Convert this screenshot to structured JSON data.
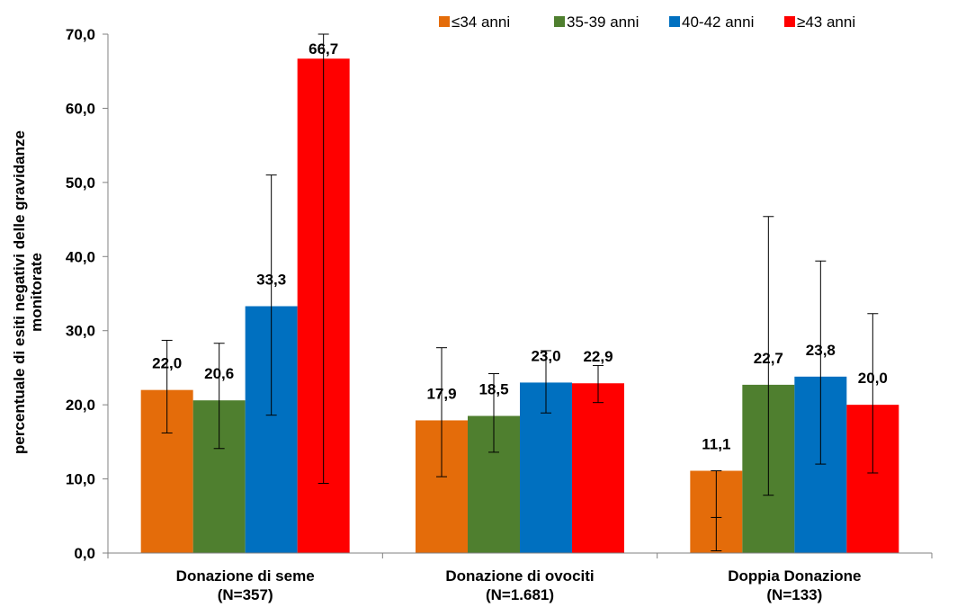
{
  "chart_data": {
    "type": "bar",
    "ylabel_lines": [
      "percentuale di esiti negativi delle gravidanze",
      "monitorate"
    ],
    "ylim": [
      0,
      70
    ],
    "yticks": [
      "0,0",
      "10,0",
      "20,0",
      "30,0",
      "40,0",
      "50,0",
      "60,0",
      "70,0"
    ],
    "categories": [
      [
        "Donazione di seme",
        "(N=357)"
      ],
      [
        "Donazione di ovociti",
        "(N=1.681)"
      ],
      [
        "Doppia Donazione",
        "(N=133)"
      ]
    ],
    "legend_placement": "top",
    "series": [
      {
        "name": "≤34 anni",
        "color": "#E46C0A",
        "values": [
          22.0,
          17.9,
          11.1
        ],
        "labels": [
          "22,0",
          "17,9",
          "11,1"
        ],
        "err_low": [
          16.2,
          10.3,
          0.3
        ],
        "err_high": [
          28.7,
          27.7,
          11.1
        ],
        "err_extra": [
          null,
          null,
          4.8
        ]
      },
      {
        "name": "35-39 anni",
        "color": "#4F7F2F",
        "values": [
          20.6,
          18.5,
          22.7
        ],
        "labels": [
          "20,6",
          "18,5",
          "22,7"
        ],
        "err_low": [
          14.1,
          13.6,
          7.8
        ],
        "err_high": [
          28.3,
          24.2,
          45.4
        ],
        "err_extra": [
          null,
          null,
          null
        ]
      },
      {
        "name": "40-42 anni",
        "color": "#0070C0",
        "values": [
          33.3,
          23.0,
          23.8
        ],
        "labels": [
          "33,3",
          "23,0",
          "23,8"
        ],
        "err_low": [
          18.6,
          18.9,
          12.0
        ],
        "err_high": [
          51.0,
          27.3,
          39.4
        ],
        "err_extra": [
          null,
          null,
          null
        ]
      },
      {
        "name": "≥43 anni",
        "color": "#FF0000",
        "values": [
          66.7,
          22.9,
          20.0
        ],
        "labels": [
          "66,7",
          "22,9",
          "20,0"
        ],
        "err_low": [
          9.4,
          20.3,
          10.8
        ],
        "err_high": [
          70.0,
          25.3,
          32.3
        ],
        "err_extra": [
          null,
          null,
          null
        ]
      }
    ]
  }
}
